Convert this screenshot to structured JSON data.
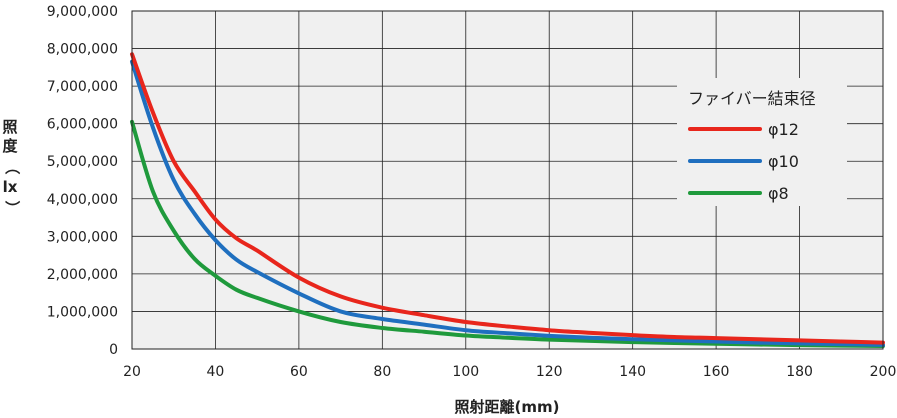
{
  "chart_data": {
    "type": "line",
    "xlabel": "照射距離(mm)",
    "ylabel": "照度（lx）",
    "ylabel_parts": [
      "照",
      "度",
      "（",
      "lx",
      "）"
    ],
    "xlim": [
      20,
      200
    ],
    "ylim": [
      0,
      9000000
    ],
    "grid": true,
    "legend_position": "right",
    "x_ticks": [
      20,
      40,
      60,
      80,
      100,
      120,
      140,
      160,
      180,
      200
    ],
    "y_ticks": [
      0,
      1000000,
      2000000,
      3000000,
      4000000,
      5000000,
      6000000,
      7000000,
      8000000,
      9000000
    ],
    "x_tick_labels": [
      "20",
      "40",
      "60",
      "80",
      "100",
      "120",
      "140",
      "160",
      "180",
      "200"
    ],
    "y_tick_labels": [
      "0",
      "1,000,000",
      "2,000,000",
      "3,000,000",
      "4,000,000",
      "5,000,000",
      "6,000,000",
      "7,000,000",
      "8,000,000",
      "9,000,000"
    ],
    "legend_title": "ファイバー結束径",
    "x": [
      20,
      25,
      30,
      35,
      40,
      45,
      50,
      60,
      70,
      80,
      90,
      100,
      110,
      120,
      130,
      140,
      150,
      160,
      170,
      180,
      190,
      200
    ],
    "series": [
      {
        "name": "φ12",
        "color": "#e8261c",
        "values": [
          7850000,
          6300000,
          5000000,
          4200000,
          3450000,
          2950000,
          2620000,
          1900000,
          1400000,
          1100000,
          900000,
          720000,
          600000,
          500000,
          430000,
          370000,
          320000,
          290000,
          260000,
          230000,
          200000,
          170000
        ]
      },
      {
        "name": "φ10",
        "color": "#1f6fbf",
        "values": [
          7650000,
          5900000,
          4500000,
          3600000,
          2900000,
          2380000,
          2050000,
          1480000,
          1000000,
          800000,
          650000,
          500000,
          420000,
          350000,
          300000,
          260000,
          230000,
          200000,
          170000,
          150000,
          130000,
          110000
        ]
      },
      {
        "name": "φ8",
        "color": "#1f9a3c",
        "values": [
          6050000,
          4200000,
          3150000,
          2400000,
          1950000,
          1580000,
          1360000,
          1000000,
          720000,
          560000,
          460000,
          360000,
          300000,
          250000,
          215000,
          185000,
          160000,
          140000,
          120000,
          105000,
          90000,
          80000
        ]
      }
    ]
  }
}
